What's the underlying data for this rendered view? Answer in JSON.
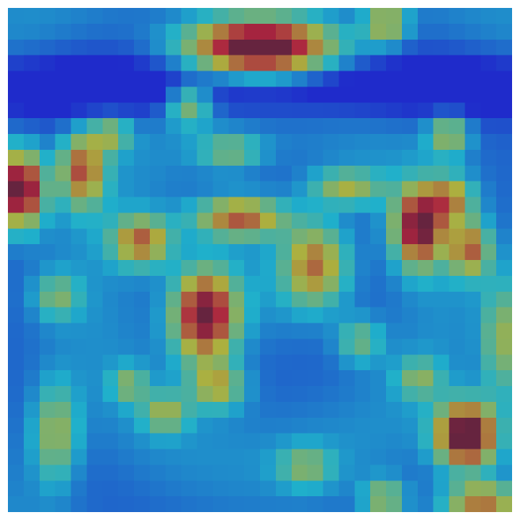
{
  "image": {
    "description_kind": "attention-heatmap-overlay",
    "colormap": "jet",
    "grid": {
      "rows": 32,
      "cols": 32
    },
    "background_color": "#262a9a",
    "hotspots": [
      {
        "name": "top-center-blob",
        "row": 2,
        "col": 15.5,
        "intensity": 1.0,
        "spread_rows": 1.3,
        "spread_cols": 3.2
      },
      {
        "name": "top-right-small",
        "row": 0.5,
        "col": 23.5,
        "intensity": 0.45,
        "spread_rows": 0.9,
        "spread_cols": 0.9
      },
      {
        "name": "left-edge-red",
        "row": 11,
        "col": 0.3,
        "intensity": 0.95,
        "spread_rows": 1.6,
        "spread_cols": 1.0
      },
      {
        "name": "left-yellow",
        "row": 9.8,
        "col": 4.2,
        "intensity": 0.6,
        "spread_rows": 1.6,
        "spread_cols": 1.0
      },
      {
        "name": "upper-left-teal",
        "row": 5.6,
        "col": 11,
        "intensity": 0.42,
        "spread_rows": 0.9,
        "spread_cols": 1.0
      },
      {
        "name": "upper-left-teal-2",
        "row": 7.5,
        "col": 6.0,
        "intensity": 0.35,
        "spread_rows": 0.8,
        "spread_cols": 0.9
      },
      {
        "name": "right-upper-teal",
        "row": 7.5,
        "col": 27.5,
        "intensity": 0.42,
        "spread_rows": 0.9,
        "spread_cols": 0.9
      },
      {
        "name": "center-top-yellow",
        "row": 12.8,
        "col": 14.2,
        "intensity": 0.62,
        "spread_rows": 0.9,
        "spread_cols": 2.0
      },
      {
        "name": "center-top-teal",
        "row": 10.9,
        "col": 21,
        "intensity": 0.4,
        "spread_rows": 0.8,
        "spread_cols": 1.6
      },
      {
        "name": "center-left-yellow",
        "row": 14.3,
        "col": 8,
        "intensity": 0.58,
        "spread_rows": 1.1,
        "spread_cols": 1.3
      },
      {
        "name": "center-yellow-diag",
        "row": 15.8,
        "col": 19,
        "intensity": 0.55,
        "spread_rows": 1.8,
        "spread_cols": 1.4
      },
      {
        "name": "center-main-orange",
        "row": 19,
        "col": 12,
        "intensity": 0.88,
        "spread_rows": 2.0,
        "spread_cols": 1.4
      },
      {
        "name": "right-orange",
        "row": 13.4,
        "col": 25.6,
        "intensity": 0.85,
        "spread_rows": 1.7,
        "spread_cols": 1.1
      },
      {
        "name": "right-yellow-2",
        "row": 14.8,
        "col": 28.8,
        "intensity": 0.55,
        "spread_rows": 1.2,
        "spread_cols": 0.9
      },
      {
        "name": "right-upper-green",
        "row": 11.6,
        "col": 27.6,
        "intensity": 0.45,
        "spread_rows": 1.0,
        "spread_cols": 1.0
      },
      {
        "name": "lower-center-teal",
        "row": 23.5,
        "col": 12.8,
        "intensity": 0.42,
        "spread_rows": 1.0,
        "spread_cols": 1.2
      },
      {
        "name": "lower-center-teal-2",
        "row": 25.2,
        "col": 9.5,
        "intensity": 0.35,
        "spread_rows": 0.9,
        "spread_cols": 1.0
      },
      {
        "name": "lower-left-teal",
        "row": 26.5,
        "col": 2.5,
        "intensity": 0.4,
        "spread_rows": 2.2,
        "spread_cols": 1.0
      },
      {
        "name": "lower-left-teal-2",
        "row": 23.4,
        "col": 7.2,
        "intensity": 0.3,
        "spread_rows": 0.8,
        "spread_cols": 0.8
      },
      {
        "name": "left-mid-teal",
        "row": 17.8,
        "col": 2.6,
        "intensity": 0.3,
        "spread_rows": 1.0,
        "spread_cols": 1.0
      },
      {
        "name": "bottom-right-red",
        "row": 26.6,
        "col": 28.6,
        "intensity": 1.0,
        "spread_rows": 1.4,
        "spread_cols": 1.3
      },
      {
        "name": "bottom-right-corner",
        "row": 30.8,
        "col": 29.5,
        "intensity": 0.55,
        "spread_rows": 0.8,
        "spread_cols": 1.6
      },
      {
        "name": "bottom-center-teal",
        "row": 30.6,
        "col": 23.4,
        "intensity": 0.4,
        "spread_rows": 0.8,
        "spread_cols": 0.9
      },
      {
        "name": "right-edge-teal",
        "row": 20.5,
        "col": 30.8,
        "intensity": 0.38,
        "spread_rows": 2.6,
        "spread_cols": 0.8
      },
      {
        "name": "right-lower-teal",
        "row": 23.0,
        "col": 25.6,
        "intensity": 0.3,
        "spread_rows": 0.9,
        "spread_cols": 1.0
      },
      {
        "name": "mid-right-teal",
        "row": 20.6,
        "col": 21.8,
        "intensity": 0.3,
        "spread_rows": 1.0,
        "spread_cols": 1.0
      },
      {
        "name": "bottom-center-2",
        "row": 28.6,
        "col": 18.4,
        "intensity": 0.3,
        "spread_rows": 0.9,
        "spread_cols": 1.2
      },
      {
        "name": "upper-mid-teal",
        "row": 8.6,
        "col": 13.6,
        "intensity": 0.3,
        "spread_rows": 0.8,
        "spread_cols": 1.4
      }
    ],
    "dark_bands": [
      {
        "name": "upper-dark-band",
        "row": 4.5,
        "intensity": -0.25,
        "spread_rows": 1.4
      }
    ]
  }
}
